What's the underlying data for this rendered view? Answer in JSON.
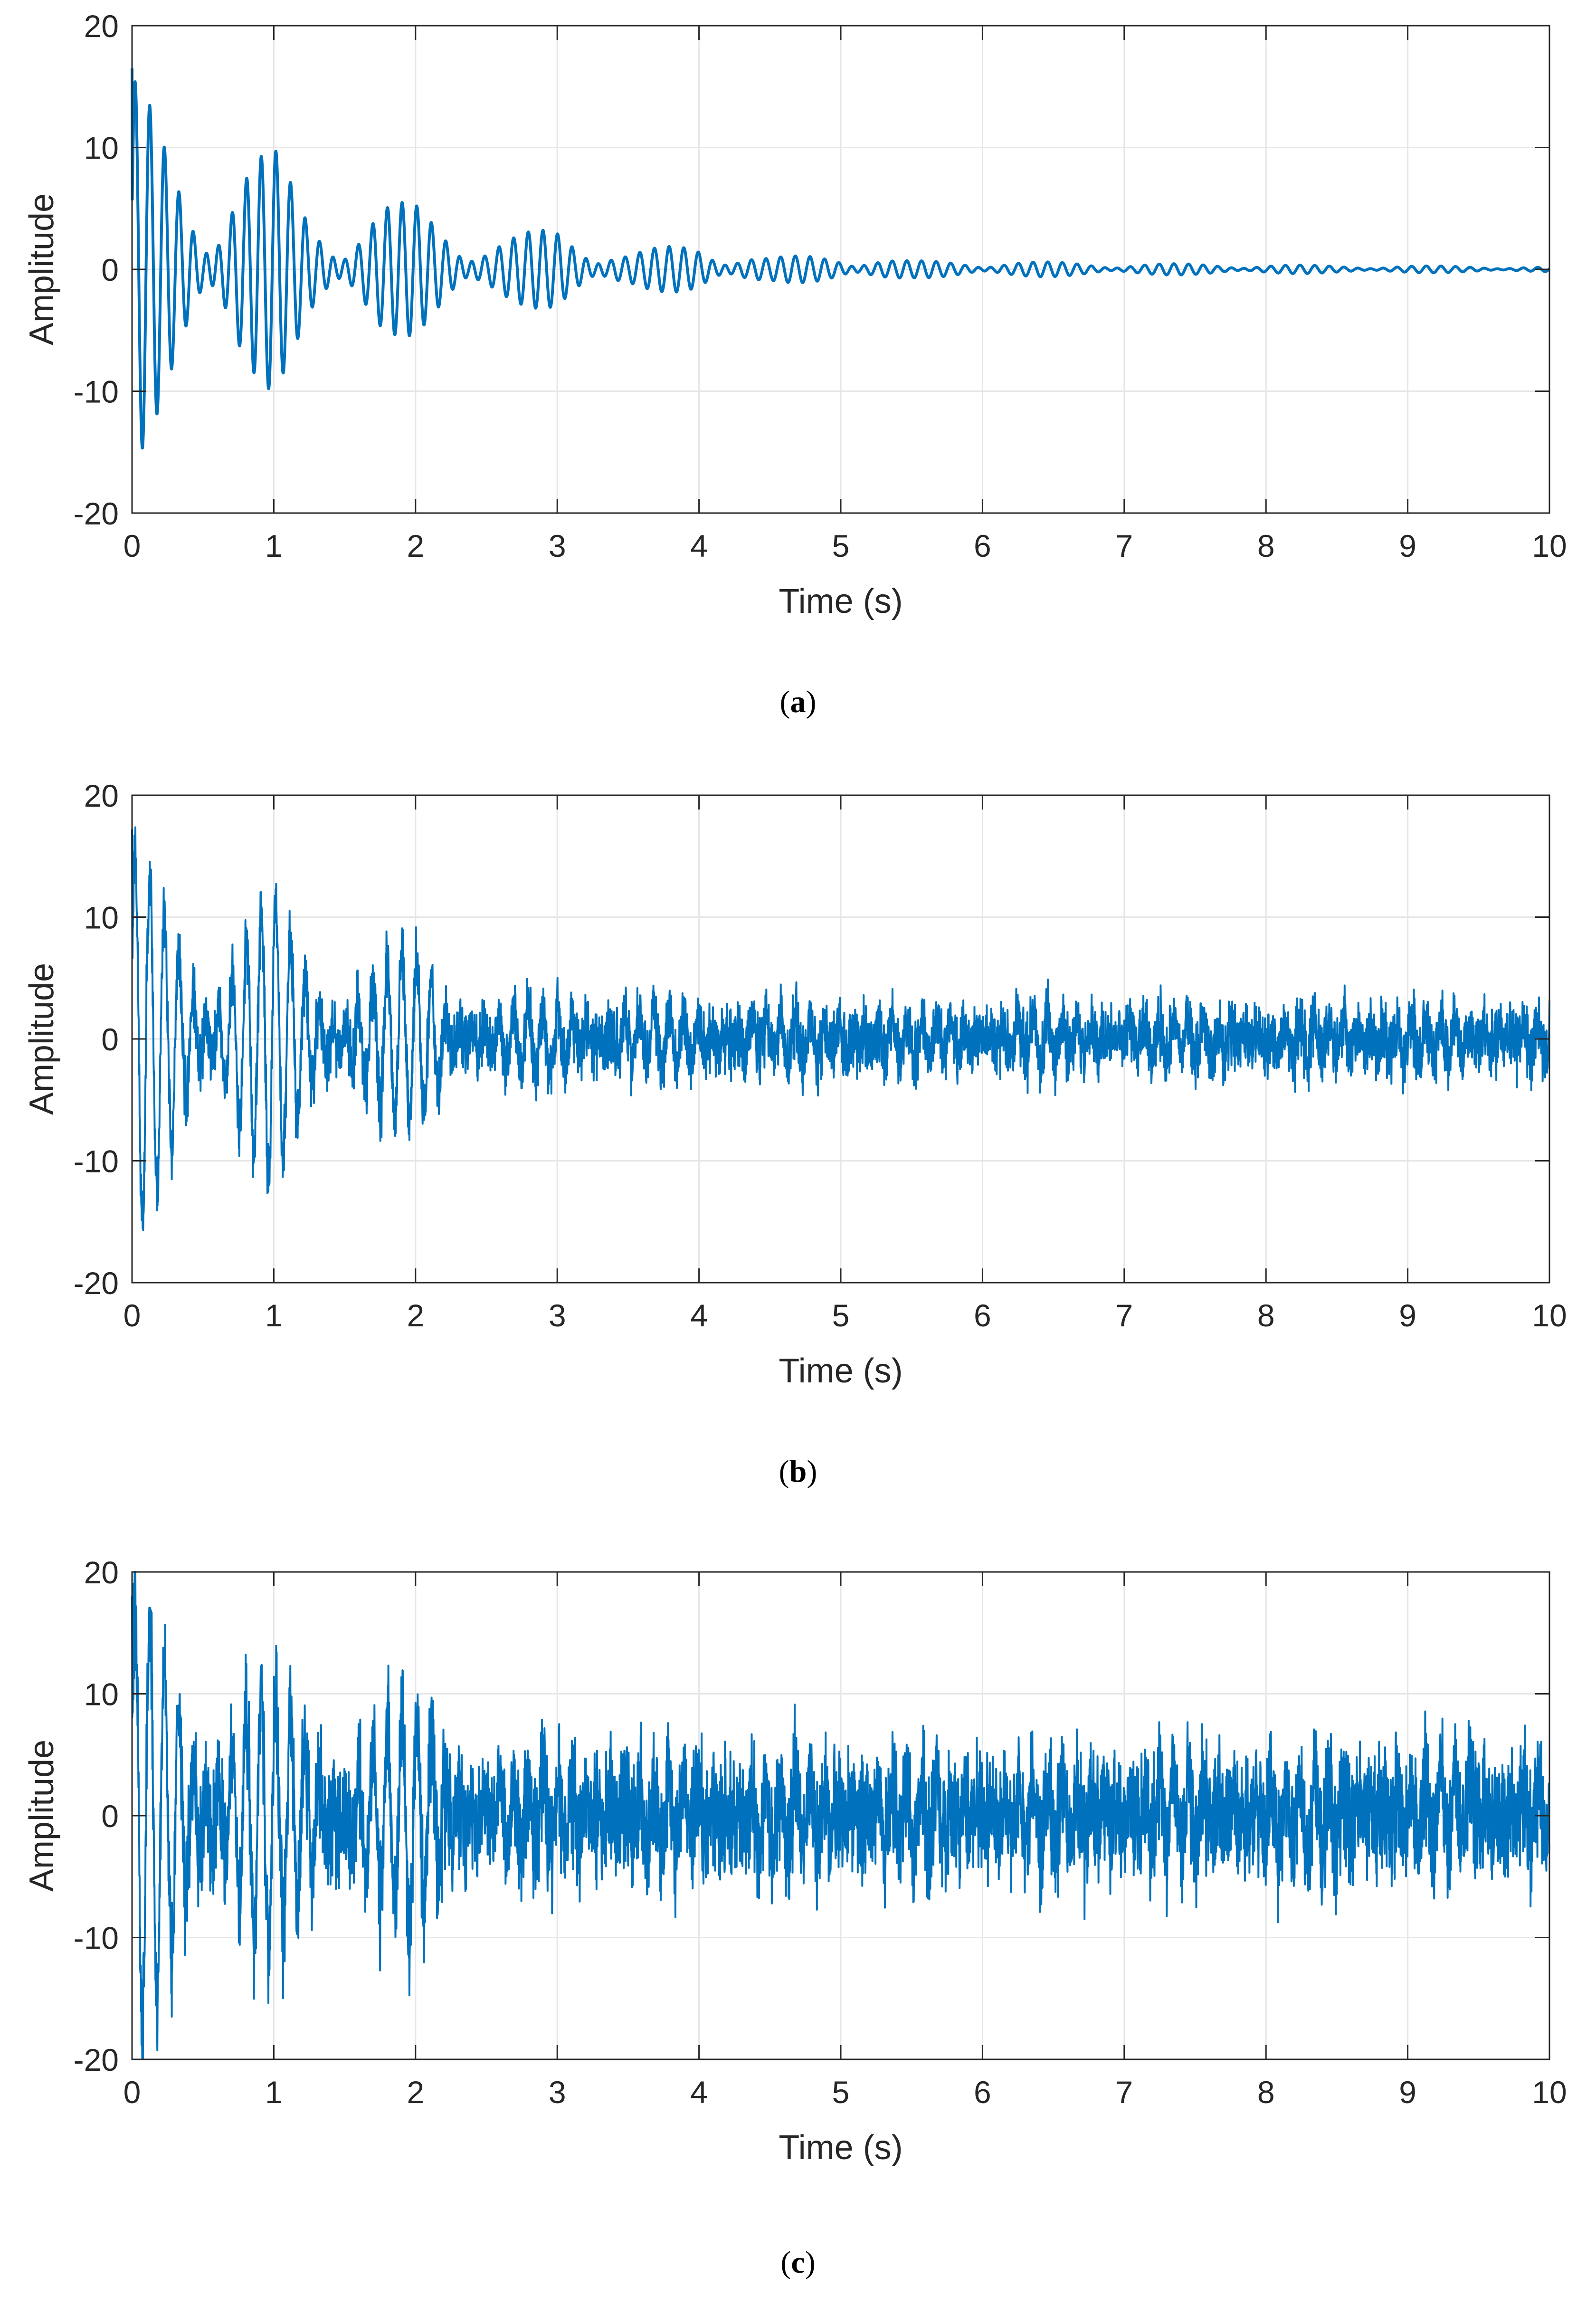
{
  "chart_data": [
    {
      "type": "line",
      "panel_label": "a",
      "xlabel": "Time (s)",
      "ylabel": "Amplitude",
      "xlim": [
        0,
        10
      ],
      "ylim": [
        -20,
        20
      ],
      "xticks": [
        0,
        1,
        2,
        3,
        4,
        5,
        6,
        7,
        8,
        9,
        10
      ],
      "yticks": [
        -20,
        -10,
        0,
        10,
        20
      ],
      "grid": true,
      "line_color": "#0072BD",
      "series": [
        {
          "x": [
            0,
            0.25,
            0.5,
            0.75,
            1.0,
            1.25,
            1.5,
            1.75,
            2.0,
            2.5,
            3.0,
            3.5,
            4.0,
            4.5,
            5.0,
            5.5,
            6.0,
            6.5,
            7.0,
            7.5,
            8.0,
            8.5,
            9.0,
            9.5,
            10.0
          ],
          "envelope": [
            16.5,
            10.5,
            5.5,
            9.5,
            10.0,
            5.0,
            3.5,
            5.5,
            5.5,
            2.5,
            3.5,
            1.5,
            2.2,
            1.0,
            1.3,
            0.7,
            0.7,
            0.6,
            0.5,
            0.45,
            0.4,
            0.3,
            0.3,
            0.25,
            0.2
          ],
          "min_peak": -15.2,
          "max_peak": 16.5
        }
      ]
    },
    {
      "type": "line",
      "panel_label": "b",
      "xlabel": "Time (s)",
      "ylabel": "Amplitude",
      "xlim": [
        0,
        10
      ],
      "ylim": [
        -20,
        20
      ],
      "xticks": [
        0,
        1,
        2,
        3,
        4,
        5,
        6,
        7,
        8,
        9,
        10
      ],
      "yticks": [
        -20,
        -10,
        0,
        10,
        20
      ],
      "grid": true,
      "line_color": "#0072BD",
      "series": [
        {
          "x": [
            0,
            0.25,
            0.5,
            0.75,
            1.0,
            1.25,
            1.5,
            1.75,
            2.0,
            2.5,
            3.0,
            3.5,
            4.0,
            4.5,
            5.0,
            5.5,
            6.0,
            6.5,
            7.0,
            7.5,
            8.0,
            8.5,
            9.0,
            9.5,
            10.0
          ],
          "envelope": [
            17.2,
            11.0,
            6.5,
            10.0,
            11.5,
            5.5,
            5.5,
            6.5,
            7.0,
            4.5,
            4.5,
            4.0,
            4.5,
            3.0,
            3.5,
            3.0,
            3.2,
            3.2,
            3.5,
            3.0,
            3.0,
            3.0,
            3.2,
            3.0,
            3.0
          ],
          "noise_level": 1.3,
          "min_peak": -17.0,
          "max_peak": 17.2
        }
      ]
    },
    {
      "type": "line",
      "panel_label": "c",
      "xlabel": "Time (s)",
      "ylabel": "Amplitude",
      "xlim": [
        0,
        10
      ],
      "ylim": [
        -20,
        20
      ],
      "xticks": [
        0,
        1,
        2,
        3,
        4,
        5,
        6,
        7,
        8,
        9,
        10
      ],
      "yticks": [
        -20,
        -10,
        0,
        10,
        20
      ],
      "grid": true,
      "line_color": "#0072BD",
      "series": [
        {
          "x": [
            0,
            0.25,
            0.5,
            0.75,
            1.0,
            1.25,
            1.5,
            1.75,
            2.0,
            2.5,
            3.0,
            3.5,
            4.0,
            4.5,
            5.0,
            5.5,
            6.0,
            6.5,
            7.0,
            7.5,
            8.0,
            8.5,
            9.0,
            9.5,
            10.0
          ],
          "envelope": [
            18.0,
            14.0,
            8.0,
            11.0,
            10.5,
            7.0,
            7.0,
            8.0,
            8.5,
            5.5,
            5.5,
            5.0,
            5.5,
            5.0,
            5.5,
            5.0,
            5.5,
            5.0,
            5.5,
            5.0,
            5.5,
            5.0,
            5.5,
            5.0,
            5.0
          ],
          "noise_level": 2.4,
          "min_peak": -15.3,
          "max_peak": 18.0
        }
      ]
    }
  ],
  "captions": [
    "a",
    "b",
    "c"
  ]
}
